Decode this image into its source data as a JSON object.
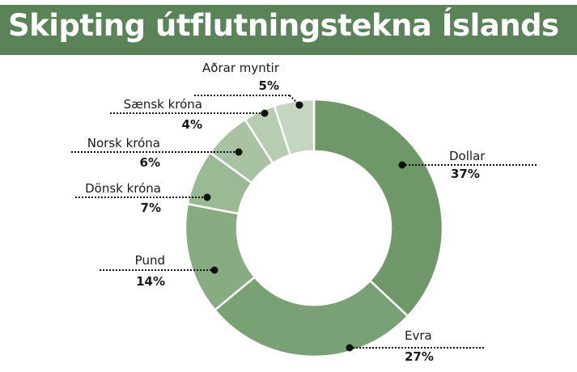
{
  "chart_data": {
    "type": "pie",
    "title": "Skipting útflutningstekna Íslands",
    "slices": [
      {
        "label": "Dollar",
        "value": 37,
        "display": "37%",
        "color": "#6f976a"
      },
      {
        "label": "Evra",
        "value": 27,
        "display": "27%",
        "color": "#7aa175"
      },
      {
        "label": "Pund",
        "value": 14,
        "display": "14%",
        "color": "#87ac82"
      },
      {
        "label": "Dönsk króna",
        "value": 7,
        "display": "7%",
        "color": "#9aba94"
      },
      {
        "label": "Norsk króna",
        "value": 6,
        "display": "6%",
        "color": "#a8c3a2"
      },
      {
        "label": "Sænsk króna",
        "value": 4,
        "display": "4%",
        "color": "#b6cdb0"
      },
      {
        "label": "Aðrar myntir",
        "value": 5,
        "display": "5%",
        "color": "#c4d6bf"
      }
    ],
    "start_angle": "12 o'clock",
    "direction": "clockwise",
    "style": "donut"
  }
}
